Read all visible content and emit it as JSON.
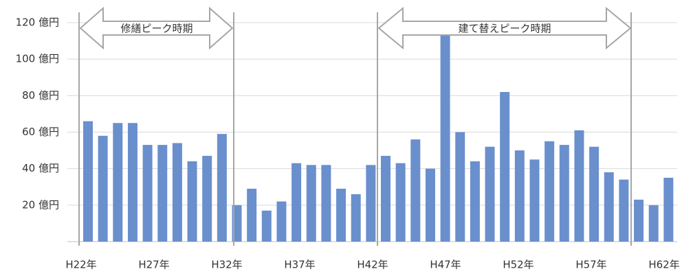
{
  "chart_data": {
    "type": "bar",
    "categories": [
      "H22年",
      null,
      null,
      null,
      null,
      "H27年",
      null,
      null,
      null,
      null,
      "H32年",
      null,
      null,
      null,
      null,
      "H37年",
      null,
      null,
      null,
      null,
      "H42年",
      null,
      null,
      null,
      null,
      "H47年",
      null,
      null,
      null,
      null,
      "H52年",
      null,
      null,
      null,
      null,
      "H57年",
      null,
      null,
      null,
      null,
      "H62年"
    ],
    "values": [
      66,
      58,
      65,
      65,
      53,
      53,
      54,
      44,
      47,
      59,
      20,
      29,
      17,
      22,
      43,
      42,
      42,
      29,
      26,
      42,
      47,
      43,
      56,
      40,
      114,
      60,
      44,
      52,
      82,
      50,
      45,
      55,
      53,
      61,
      52,
      38,
      34,
      23,
      20,
      35,
      null
    ],
    "color": "#6a8fcd",
    "ylim": [
      0,
      120
    ],
    "yticks": [
      {
        "value": 20,
        "label": "20 億円"
      },
      {
        "value": 40,
        "label": "40 億円"
      },
      {
        "value": 60,
        "label": "60 億円"
      },
      {
        "value": 80,
        "label": "80 億円"
      },
      {
        "value": 100,
        "label": "100 億円"
      },
      {
        "value": 120,
        "label": "120 億円"
      }
    ],
    "grid": true,
    "annotations": [
      "修繕ピーク時期",
      "建て替えピーク時期"
    ]
  }
}
